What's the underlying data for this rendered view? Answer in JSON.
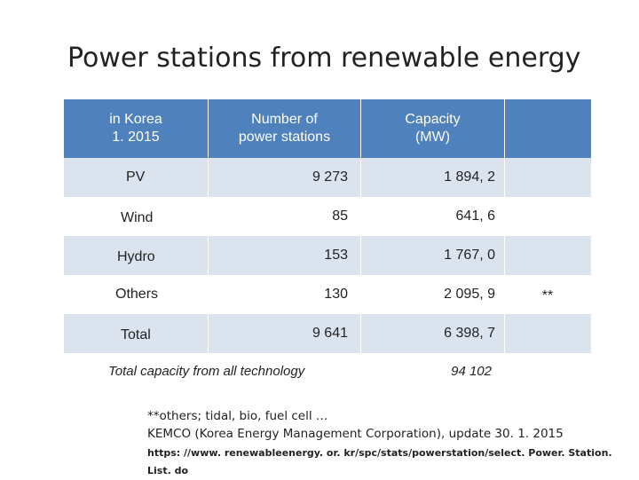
{
  "title": "Power stations from renewable energy",
  "table": {
    "headers": {
      "col1_line1": "in Korea",
      "col1_line2": "1. 2015",
      "col2_line1": "Number of",
      "col2_line2": "power stations",
      "col3_line1": "Capacity",
      "col3_line2": "(MW)"
    },
    "rows": [
      {
        "name": "PV",
        "stations": "9 273",
        "capacity": "1 894, 2",
        "note": ""
      },
      {
        "name": "Wind",
        "stations": "85",
        "capacity": "641, 6",
        "note": ""
      },
      {
        "name": "Hydro",
        "stations": "153",
        "capacity": "1 767, 0",
        "note": ""
      },
      {
        "name": "Others",
        "stations": "130",
        "capacity": "2 095, 9",
        "note": "**"
      },
      {
        "name": "Total",
        "stations": "9 641",
        "capacity": "6 398, 7",
        "note": ""
      }
    ],
    "footer_label": "Total capacity from all technology",
    "footer_value": "94 102"
  },
  "notes": {
    "line1": "**others; tidal, bio, fuel cell …",
    "line2": "KEMCO (Korea Energy Management Corporation), update 30. 1. 2015",
    "url": "https: //www. renewableenergy. or. kr/spc/stats/powerstation/select. Power. Station. List. do"
  }
}
